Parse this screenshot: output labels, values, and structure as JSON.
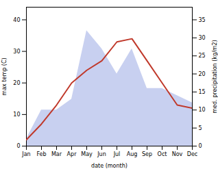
{
  "chart_data": {
    "type": "line",
    "categories": [
      "Jan",
      "Feb",
      "Mar",
      "Apr",
      "May",
      "Jun",
      "Jul",
      "Aug",
      "Sep",
      "Oct",
      "Nov",
      "Dec"
    ],
    "xlabel": "date (month)",
    "ylabel": "max temp (C)",
    "y2label": "med. precipitation (kg/m2)",
    "ylim": [
      0,
      44
    ],
    "yticks": [
      0,
      10,
      20,
      30,
      40
    ],
    "y2lim": [
      0,
      38.5
    ],
    "y2ticks": [
      0,
      5,
      10,
      15,
      20,
      25,
      30,
      35
    ],
    "series": [
      {
        "type": "line",
        "color": "#c0392b",
        "values": [
          2,
          7,
          13,
          20,
          24,
          27,
          33,
          34,
          27,
          20,
          13,
          12
        ]
      },
      {
        "type": "area",
        "axis": "y2",
        "color": "#c8d0f0",
        "values": [
          2,
          10,
          10,
          13,
          32,
          27,
          20,
          27,
          16,
          16,
          14,
          12
        ]
      }
    ]
  }
}
